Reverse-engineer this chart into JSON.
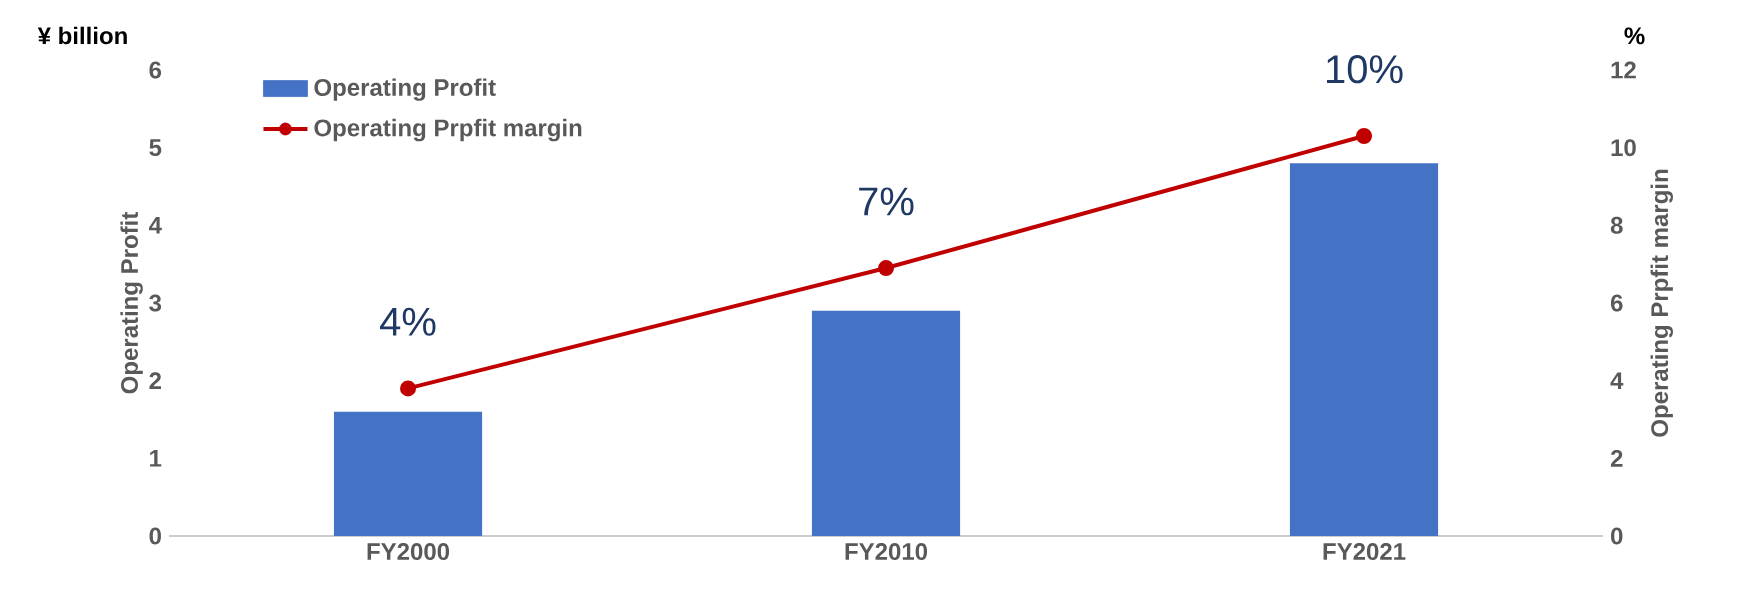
{
  "chart_data": {
    "type": "bar",
    "categories": [
      "FY2000",
      "FY2010",
      "FY2021"
    ],
    "ylabel": "Operating Profit",
    "y2label": "Operating Prpfit margin",
    "ylim": [
      0,
      6
    ],
    "yticks": [
      0,
      1,
      2,
      3,
      4,
      5,
      6
    ],
    "y2lim": [
      0,
      12
    ],
    "y2ticks": [
      0,
      2,
      4,
      6,
      8,
      10,
      12
    ],
    "legend": "top left",
    "marker": "circle",
    "annotations": [
      "¥ billion",
      "%"
    ],
    "series": [
      {
        "name": "Operating Profit",
        "color": "#4472c4",
        "values": [
          1.6,
          2.9,
          4.8
        ]
      },
      {
        "name": "Operating Prpfit margin",
        "type": "line",
        "axis": "y2",
        "color": "#c00000",
        "values": [
          3.8,
          6.9,
          10.3
        ],
        "value_labels": [
          "4%",
          "7%",
          "10%"
        ]
      }
    ]
  }
}
